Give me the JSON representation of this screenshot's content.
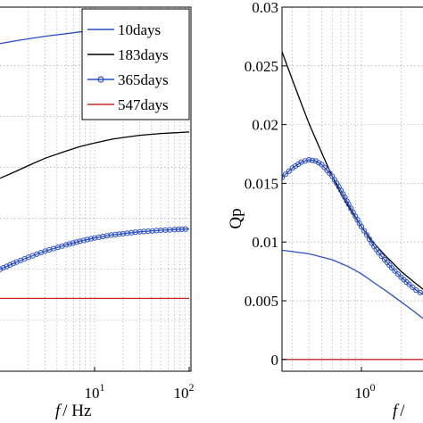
{
  "chart_data": [
    {
      "type": "line",
      "panel": "left",
      "xscale": "log",
      "xlim": [
        1,
        100
      ],
      "xticks": [
        10,
        100
      ],
      "xtick_labels": [
        {
          "base": "10",
          "exp": "1"
        },
        {
          "base": "10",
          "exp": "2"
        }
      ],
      "xlabel": {
        "italic": "f",
        "rest": "/ Hz"
      },
      "ylabel": "",
      "yticks": [],
      "grid": true,
      "legend_position": "top-right",
      "series": [
        {
          "name": "10days",
          "color": "#2b4fc4",
          "marker": "none",
          "x": [
            1,
            1.5,
            2,
            3,
            5,
            7,
            10,
            15,
            20,
            30,
            50,
            70,
            100
          ],
          "y": [
            0.9,
            0.908,
            0.913,
            0.92,
            0.927,
            0.932,
            0.936,
            0.94,
            0.943,
            0.946,
            0.949,
            0.951,
            0.953
          ]
        },
        {
          "name": "183days",
          "color": "#000000",
          "marker": "none",
          "x": [
            1,
            1.5,
            2,
            3,
            5,
            7,
            10,
            15,
            20,
            30,
            50,
            70,
            100
          ],
          "y": [
            0.53,
            0.55,
            0.565,
            0.585,
            0.605,
            0.617,
            0.627,
            0.637,
            0.642,
            0.648,
            0.653,
            0.655,
            0.657
          ]
        },
        {
          "name": "365days",
          "color": "#2b4fc4",
          "marker": "circle",
          "x": [
            1,
            1.5,
            2,
            3,
            5,
            7,
            10,
            15,
            20,
            30,
            50,
            70,
            100
          ],
          "y": [
            0.28,
            0.3,
            0.313,
            0.33,
            0.347,
            0.357,
            0.366,
            0.374,
            0.378,
            0.383,
            0.387,
            0.389,
            0.391
          ]
        },
        {
          "name": "547days",
          "color": "#c62828",
          "marker": "none",
          "x": [
            1,
            100
          ],
          "y": [
            0.2,
            0.2
          ]
        }
      ]
    },
    {
      "type": "line",
      "panel": "right",
      "xscale": "log",
      "xlim": [
        0.25,
        3
      ],
      "xticks": [
        1
      ],
      "xtick_labels": [
        {
          "base": "10",
          "exp": "0"
        }
      ],
      "xlabel": {
        "italic": "f",
        "rest": "/"
      },
      "ylabel": "Qp",
      "ylim": [
        -0.001,
        0.03
      ],
      "yticks": [
        0,
        0.005,
        0.01,
        0.015,
        0.02,
        0.025,
        0.03
      ],
      "ytick_labels": [
        "0",
        "0.005",
        "0.01",
        "0.015",
        "0.02",
        "0.025",
        "0.03"
      ],
      "grid": true,
      "series": [
        {
          "name": "183days",
          "color": "#000000",
          "marker": "none",
          "x": [
            0.25,
            0.3,
            0.35,
            0.4,
            0.5,
            0.6,
            0.7,
            0.8,
            1.0,
            1.2,
            1.5,
            2.0,
            2.5,
            3.0
          ],
          "y": [
            0.0262,
            0.0238,
            0.0218,
            0.0201,
            0.0176,
            0.0156,
            0.0141,
            0.013,
            0.0113,
            0.0101,
            0.0089,
            0.0075,
            0.0066,
            0.0059
          ]
        },
        {
          "name": "365days",
          "color": "#2b4fc4",
          "marker": "circle",
          "x": [
            0.25,
            0.3,
            0.35,
            0.4,
            0.45,
            0.5,
            0.55,
            0.6,
            0.65,
            0.7,
            0.75,
            0.8,
            0.9,
            1.0,
            1.1,
            1.2,
            1.35,
            1.5,
            1.7,
            2.0,
            2.3,
            2.6,
            3.0
          ],
          "y": [
            0.0155,
            0.0163,
            0.0168,
            0.017,
            0.0169,
            0.0166,
            0.0161,
            0.0156,
            0.015,
            0.0144,
            0.0138,
            0.0132,
            0.0122,
            0.0113,
            0.0106,
            0.0099,
            0.0091,
            0.0085,
            0.0078,
            0.007,
            0.0064,
            0.0059,
            0.0055
          ]
        },
        {
          "name": "10days",
          "color": "#2b4fc4",
          "marker": "none",
          "x": [
            0.25,
            0.4,
            0.6,
            0.8,
            1.0,
            1.3,
            1.6,
            2.0,
            2.5,
            3.0
          ],
          "y": [
            0.0093,
            0.009,
            0.0085,
            0.0079,
            0.0073,
            0.0064,
            0.0057,
            0.0049,
            0.0041,
            0.0034
          ]
        },
        {
          "name": "547days",
          "color": "#c62828",
          "marker": "none",
          "x": [
            0.25,
            3.0
          ],
          "y": [
            0.0,
            0.0
          ]
        }
      ]
    }
  ]
}
